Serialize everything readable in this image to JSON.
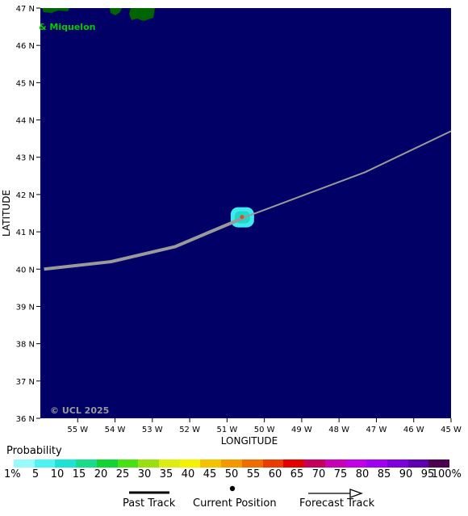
{
  "map": {
    "lon_range": [
      -56,
      -45
    ],
    "lat_range": [
      36,
      47
    ],
    "lon_ticks": [
      {
        "value": -55,
        "label": "55 W"
      },
      {
        "value": -54,
        "label": "54 W"
      },
      {
        "value": -53,
        "label": "53 W"
      },
      {
        "value": -52,
        "label": "52 W"
      },
      {
        "value": -51,
        "label": "51 W"
      },
      {
        "value": -50,
        "label": "50 W"
      },
      {
        "value": -49,
        "label": "49 W"
      },
      {
        "value": -48,
        "label": "48 W"
      },
      {
        "value": -47,
        "label": "47 W"
      },
      {
        "value": -46,
        "label": "46 W"
      },
      {
        "value": -45,
        "label": "45 W"
      }
    ],
    "lat_ticks": [
      {
        "value": 36,
        "label": "36 N"
      },
      {
        "value": 37,
        "label": "37 N"
      },
      {
        "value": 38,
        "label": "38 N"
      },
      {
        "value": 39,
        "label": "39 N"
      },
      {
        "value": 40,
        "label": "40 N"
      },
      {
        "value": 41,
        "label": "41 N"
      },
      {
        "value": 42,
        "label": "42 N"
      },
      {
        "value": 43,
        "label": "43 N"
      },
      {
        "value": 44,
        "label": "44 N"
      },
      {
        "value": 45,
        "label": "45 N"
      },
      {
        "value": 46,
        "label": "46 N"
      },
      {
        "value": 47,
        "label": "47 N"
      }
    ],
    "xlabel": "LONGITUDE",
    "ylabel": "LATITUDE",
    "place_label": "& Miquelon",
    "copyright": "© UCL 2025",
    "colors": {
      "ocean": "#000066",
      "land": "#006400",
      "track": "#9a9a9a",
      "place_label": "#00cc00",
      "copyright": "#9a9a9a"
    },
    "past_track": [
      {
        "lon": -55.9,
        "lat": 40.0
      },
      {
        "lon": -54.1,
        "lat": 40.2
      },
      {
        "lon": -52.4,
        "lat": 40.6
      },
      {
        "lon": -50.5,
        "lat": 41.4
      }
    ],
    "forecast_track": [
      {
        "lon": -50.5,
        "lat": 41.4
      },
      {
        "lon": -47.3,
        "lat": 42.6
      },
      {
        "lon": -45.0,
        "lat": 43.7
      }
    ],
    "current_position": {
      "lon": -50.6,
      "lat": 41.4
    },
    "probability_patch": {
      "lon": -50.6,
      "lat": 41.4,
      "level": "5-10%"
    }
  },
  "legend": {
    "title": "Probability",
    "labels": [
      "1%",
      "5",
      "10",
      "15",
      "20",
      "25",
      "30",
      "35",
      "40",
      "45",
      "50",
      "55",
      "60",
      "65",
      "70",
      "75",
      "80",
      "85",
      "90",
      "95",
      "100%"
    ],
    "colors": [
      "#98fbfb",
      "#4df2f2",
      "#1de3d6",
      "#17dd88",
      "#12d435",
      "#48e112",
      "#9ae011",
      "#dcee10",
      "#f5f200",
      "#f4c200",
      "#f39900",
      "#ef6c00",
      "#ec3b00",
      "#e50000",
      "#c4005b",
      "#c800b4",
      "#bf00e6",
      "#a000f0",
      "#7d00dc",
      "#5c00b0",
      "#4d0050"
    ]
  },
  "key": {
    "past_track": "Past Track",
    "current_position": "Current Position",
    "forecast_track": "Forecast Track"
  }
}
